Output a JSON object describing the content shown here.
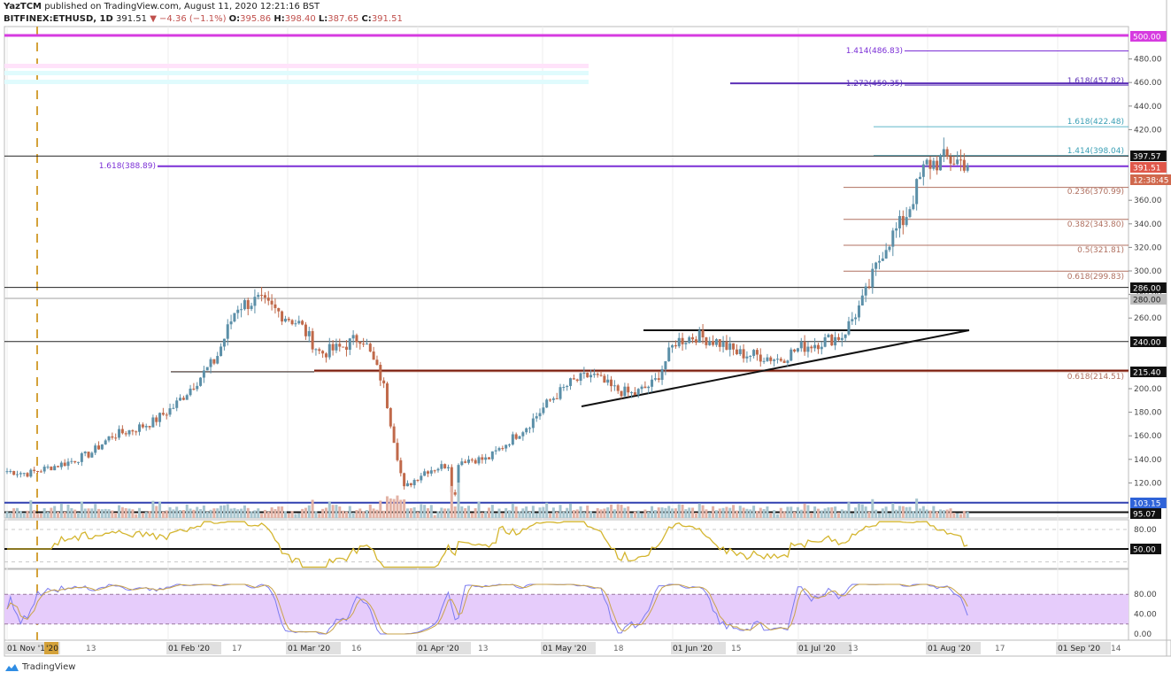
{
  "header": {
    "author": "YazTCM",
    "published": " published on TradingView.com, August 11, 2020 12:21:16 BST",
    "symbol": "BITFINEX:ETHUSD, 1D",
    "last": "391.51",
    "change": "▼ −4.36 (−1.1%)",
    "o_label": "O:",
    "o": "395.86",
    "h_label": "H:",
    "h": "398.40",
    "l_label": "L:",
    "l": "387.65",
    "c_label": "C:",
    "c": "391.51"
  },
  "footer": {
    "brand": "TradingView"
  },
  "colors": {
    "up": "#5b8fa8",
    "down": "#c0694a",
    "bg": "#ffffff",
    "rsi": "#d4b52e",
    "stoch_k": "#7b7bf0",
    "stoch_d": "#c9a34a",
    "stoch_band": "#e6ccfb",
    "fib_brown": "#b07060",
    "purple": "#7b2fd6",
    "magenta": "#d63be0",
    "teal": "#5fb7c9"
  },
  "chart_data": {
    "type": "candlestick",
    "title": "BITFINEX:ETHUSD, 1D",
    "xlabel": "",
    "ylabel": "Price (USD)",
    "ylim": [
      95,
      505
    ],
    "x_ticks": [
      "01 Nov '19",
      "'20",
      "13",
      "01 Feb '20",
      "17",
      "01 Mar '20",
      "16",
      "01 Apr '20",
      "13",
      "01 May '20",
      "18",
      "01 Jun '20",
      "15",
      "01 Jul '20",
      "13",
      "01 Aug '20",
      "17",
      "01 Sep '20",
      "14"
    ],
    "y_ticks": [
      120,
      140,
      160,
      180,
      200,
      260,
      280,
      300,
      320,
      340,
      360,
      420,
      440,
      460,
      480
    ],
    "price_series_weekly_close": [
      130,
      128,
      133,
      138,
      145,
      160,
      165,
      172,
      185,
      205,
      225,
      270,
      275,
      265,
      255,
      230,
      235,
      245,
      205,
      115,
      130,
      135,
      140,
      140,
      155,
      170,
      190,
      205,
      212,
      200,
      195,
      205,
      240,
      245,
      240,
      230,
      228,
      225,
      235,
      240,
      245,
      275,
      320,
      345,
      390,
      395,
      392
    ],
    "horizontal_levels": [
      {
        "label": "500.00",
        "value": 500,
        "color": "#d63be0"
      },
      {
        "label": "1.414(486.83)",
        "value": 486.83,
        "color": "#7b2fd6"
      },
      {
        "label": "1.272(459.35)",
        "value": 459.35,
        "color": "#5b2fb6"
      },
      {
        "label": "1.618(457.82)",
        "value": 457.82,
        "color": "#5b2fb6"
      },
      {
        "label": "1.618(422.48)",
        "value": 422.48,
        "color": "#5fb7c9"
      },
      {
        "label": "1.414(398.04)",
        "value": 398.04,
        "color": "#5fb7c9"
      },
      {
        "label": "397.57",
        "value": 397.57,
        "color": "#222222"
      },
      {
        "label": "1.618(388.89)",
        "value": 388.89,
        "color": "#7b2fd6"
      },
      {
        "label": "0.236(370.99)",
        "value": 370.99,
        "color": "#b07060"
      },
      {
        "label": "0.382(343.80)",
        "value": 343.8,
        "color": "#b07060"
      },
      {
        "label": "0.5(321.81)",
        "value": 321.81,
        "color": "#b07060"
      },
      {
        "label": "0.618(299.83)",
        "value": 299.83,
        "color": "#b07060"
      },
      {
        "label": "286.00",
        "value": 286,
        "color": "#222222"
      },
      {
        "label": "240.00",
        "value": 240,
        "color": "#222222"
      },
      {
        "label": "215.40",
        "value": 215.4,
        "color": "#7a1a0a"
      },
      {
        "label": "0.618(214.51)",
        "value": 214.51,
        "color": "#b07060"
      },
      {
        "label": "103.15",
        "value": 103.15,
        "color": "#3040b0"
      },
      {
        "label": "95.07",
        "value": 95.07,
        "color": "#111111"
      }
    ],
    "price_badges": [
      {
        "label": "500.00",
        "bg": "#d63be0",
        "fg": "#ffffff",
        "y": 41
      },
      {
        "label": "397.57",
        "bg": "#111111",
        "fg": "#ffffff",
        "y": 176
      },
      {
        "label": "391.51",
        "bg": "#e0574a",
        "fg": "#ffffff",
        "y": 189
      },
      {
        "label": "12:38:45",
        "bg": "#d0684d",
        "fg": "#ffffff",
        "y": 203
      },
      {
        "label": "286.00",
        "bg": "#111111",
        "fg": "#ffffff",
        "y": 325
      },
      {
        "label": "280.00",
        "bg": "#bdbdbd",
        "fg": "#222222",
        "y": 338
      },
      {
        "label": "240.00",
        "bg": "#111111",
        "fg": "#ffffff",
        "y": 386
      },
      {
        "label": "215.40",
        "bg": "#111111",
        "fg": "#ffffff",
        "y": 420
      },
      {
        "label": "103.15",
        "bg": "#2f63d8",
        "fg": "#ffffff",
        "y": 568
      },
      {
        "label": "95.07",
        "bg": "#111111",
        "fg": "#ffffff",
        "y": 580
      },
      {
        "label": "50.00",
        "bg": "#111111",
        "fg": "#ffffff",
        "y": 620
      }
    ],
    "rsi": {
      "ylim": [
        20,
        95
      ],
      "levels": [
        80,
        50,
        30
      ],
      "ticks": [
        "80.00",
        "50.00"
      ],
      "last": 67
    },
    "stoch": {
      "ticks": [
        "80.00",
        "40.00",
        "0.00"
      ],
      "band": [
        20,
        80
      ]
    },
    "triangle": {
      "top": 248,
      "apex_date": "mid-Aug 2020"
    }
  }
}
